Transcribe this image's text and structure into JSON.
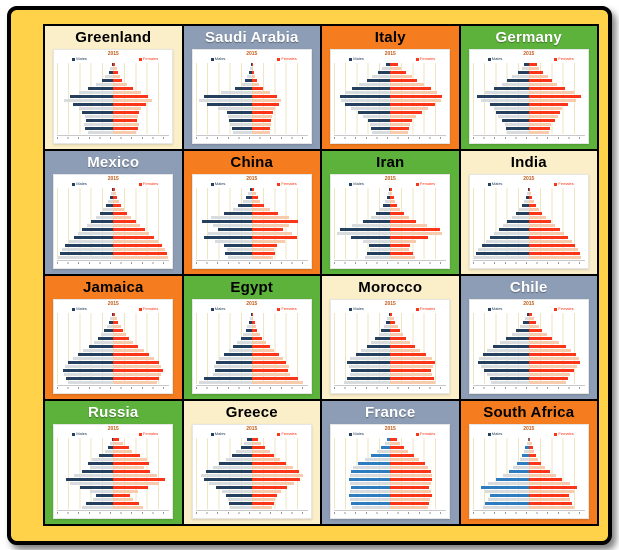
{
  "page": {
    "year_label": "2015",
    "legend": {
      "male": "Males",
      "female": "Females"
    }
  },
  "palette": {
    "gold": "#FFD24A",
    "cream": "#FBEFC9",
    "blue_gray": "#8D9DB5",
    "orange": "#F57D1F",
    "green": "#5CB23B",
    "navy": "#24405E",
    "male_blue": "#2E7CC0",
    "male_light": "#D8DCDE",
    "female_red": "#FB3517",
    "female_light": "#F8CBAD",
    "grid_line": "#EFE6C0",
    "year_text": "#BF5B17"
  },
  "chart_data": [
    {
      "type": "bar",
      "title": "Greenland",
      "year": "2015",
      "legend": [
        "Males",
        "Females"
      ],
      "bg": "cream",
      "title_color": "dark",
      "male_color": "navy",
      "males": [
        3,
        5,
        8,
        14,
        20,
        30,
        45,
        62,
        78,
        88,
        72,
        62,
        55,
        50,
        48,
        52,
        50,
        46
      ],
      "females": [
        4,
        6,
        9,
        12,
        16,
        24,
        36,
        50,
        62,
        70,
        58,
        50,
        46,
        44,
        42,
        46,
        44,
        40
      ]
    },
    {
      "type": "bar",
      "title": "Saudi Arabia",
      "year": "2015",
      "legend": [
        "Males",
        "Females"
      ],
      "bg": "blue_gray",
      "title_color": "light",
      "male_color": "navy",
      "males": [
        2,
        3,
        5,
        8,
        12,
        18,
        30,
        55,
        85,
        95,
        80,
        60,
        45,
        42,
        40,
        38,
        36,
        34
      ],
      "females": [
        2,
        3,
        4,
        6,
        9,
        13,
        20,
        32,
        45,
        52,
        48,
        42,
        38,
        36,
        35,
        34,
        33,
        32
      ]
    },
    {
      "type": "bar",
      "title": "Italy",
      "year": "2015",
      "legend": [
        "Males",
        "Females"
      ],
      "bg": "orange",
      "title_color": "dark",
      "male_color": "navy",
      "males": [
        8,
        14,
        22,
        32,
        42,
        55,
        68,
        80,
        90,
        88,
        80,
        70,
        58,
        48,
        40,
        36,
        34,
        32
      ],
      "females": [
        14,
        20,
        28,
        38,
        48,
        60,
        72,
        83,
        92,
        90,
        80,
        68,
        56,
        46,
        38,
        35,
        33,
        31
      ]
    },
    {
      "type": "bar",
      "title": "Germany",
      "year": "2015",
      "legend": [
        "Males",
        "Females"
      ],
      "bg": "green",
      "title_color": "light",
      "male_color": "navy",
      "males": [
        8,
        12,
        20,
        30,
        38,
        48,
        62,
        78,
        92,
        85,
        70,
        62,
        58,
        55,
        48,
        42,
        40,
        38
      ],
      "females": [
        14,
        18,
        26,
        34,
        42,
        50,
        64,
        80,
        93,
        85,
        70,
        60,
        56,
        52,
        46,
        40,
        38,
        36
      ]
    },
    {
      "type": "bar",
      "title": "Mexico",
      "year": "2015",
      "legend": [
        "Males",
        "Females"
      ],
      "bg": "blue_gray",
      "title_color": "light",
      "male_color": "navy",
      "males": [
        2,
        4,
        6,
        9,
        13,
        18,
        24,
        31,
        39,
        47,
        55,
        63,
        71,
        79,
        86,
        92,
        96,
        98
      ],
      "females": [
        3,
        5,
        7,
        10,
        14,
        19,
        25,
        32,
        40,
        48,
        56,
        64,
        72,
        80,
        87,
        93,
        96,
        97
      ]
    },
    {
      "type": "bar",
      "title": "China",
      "year": "2015",
      "legend": [
        "Males",
        "Females"
      ],
      "bg": "orange",
      "title_color": "dark",
      "male_color": "navy",
      "males": [
        3,
        6,
        10,
        16,
        24,
        34,
        50,
        72,
        88,
        70,
        60,
        78,
        85,
        66,
        50,
        44,
        48,
        42
      ],
      "females": [
        4,
        7,
        11,
        15,
        22,
        32,
        46,
        66,
        82,
        66,
        56,
        72,
        80,
        60,
        45,
        40,
        42,
        38
      ]
    },
    {
      "type": "bar",
      "title": "Iran",
      "year": "2015",
      "legend": [
        "Males",
        "Females"
      ],
      "bg": "green",
      "title_color": "dark",
      "male_color": "navy",
      "males": [
        2,
        4,
        6,
        9,
        13,
        18,
        25,
        34,
        48,
        68,
        90,
        95,
        70,
        48,
        38,
        36,
        42,
        46
      ],
      "females": [
        3,
        4,
        6,
        9,
        12,
        17,
        24,
        33,
        46,
        66,
        88,
        93,
        68,
        46,
        36,
        34,
        40,
        44
      ]
    },
    {
      "type": "bar",
      "title": "India",
      "year": "2015",
      "legend": [
        "Males",
        "Females"
      ],
      "bg": "cream",
      "title_color": "dark",
      "male_color": "navy",
      "males": [
        2,
        3,
        5,
        8,
        12,
        17,
        23,
        30,
        38,
        46,
        54,
        62,
        70,
        77,
        84,
        90,
        95,
        97
      ],
      "females": [
        2,
        4,
        6,
        9,
        13,
        18,
        24,
        31,
        39,
        47,
        55,
        63,
        70,
        77,
        83,
        88,
        92,
        94
      ]
    },
    {
      "type": "bar",
      "title": "Jamaica",
      "year": "2015",
      "legend": [
        "Males",
        "Females"
      ],
      "bg": "orange",
      "title_color": "dark",
      "male_color": "navy",
      "males": [
        3,
        5,
        8,
        12,
        16,
        22,
        28,
        35,
        44,
        54,
        63,
        72,
        80,
        86,
        90,
        88,
        84,
        80
      ],
      "females": [
        4,
        6,
        9,
        13,
        17,
        23,
        29,
        36,
        45,
        55,
        64,
        73,
        81,
        85,
        88,
        86,
        82,
        78
      ]
    },
    {
      "type": "bar",
      "title": "Egypt",
      "year": "2015",
      "legend": [
        "Males",
        "Females"
      ],
      "bg": "green",
      "title_color": "dark",
      "male_color": "navy",
      "males": [
        2,
        3,
        5,
        8,
        11,
        15,
        20,
        26,
        33,
        41,
        50,
        58,
        64,
        68,
        66,
        70,
        85,
        95
      ],
      "females": [
        2,
        3,
        5,
        7,
        10,
        14,
        19,
        25,
        32,
        40,
        48,
        56,
        62,
        66,
        64,
        68,
        82,
        92
      ]
    },
    {
      "type": "bar",
      "title": "Morocco",
      "year": "2015",
      "legend": [
        "Males",
        "Females"
      ],
      "bg": "cream",
      "title_color": "dark",
      "male_color": "navy",
      "males": [
        3,
        5,
        8,
        12,
        16,
        21,
        27,
        34,
        42,
        52,
        62,
        72,
        78,
        74,
        70,
        72,
        78,
        82
      ],
      "females": [
        4,
        6,
        9,
        13,
        17,
        22,
        28,
        35,
        44,
        54,
        64,
        74,
        80,
        76,
        72,
        74,
        78,
        80
      ]
    },
    {
      "type": "bar",
      "title": "Chile",
      "year": "2015",
      "legend": [
        "Males",
        "Females"
      ],
      "bg": "blue_gray",
      "title_color": "light",
      "male_color": "navy",
      "males": [
        4,
        7,
        11,
        16,
        22,
        30,
        40,
        52,
        64,
        74,
        82,
        88,
        90,
        86,
        80,
        74,
        70,
        68
      ],
      "females": [
        6,
        9,
        13,
        18,
        24,
        32,
        42,
        54,
        66,
        76,
        84,
        89,
        91,
        86,
        80,
        74,
        70,
        67
      ]
    },
    {
      "type": "bar",
      "title": "Russia",
      "year": "2015",
      "legend": [
        "Males",
        "Females"
      ],
      "bg": "green",
      "title_color": "light",
      "male_color": "navy",
      "males": [
        3,
        6,
        10,
        14,
        26,
        38,
        46,
        42,
        55,
        70,
        85,
        78,
        60,
        42,
        30,
        36,
        48,
        56
      ],
      "females": [
        10,
        18,
        28,
        34,
        48,
        60,
        64,
        55,
        65,
        78,
        92,
        82,
        62,
        44,
        30,
        36,
        46,
        54
      ]
    },
    {
      "type": "bar",
      "title": "Greece",
      "year": "2015",
      "legend": [
        "Males",
        "Females"
      ],
      "bg": "cream",
      "title_color": "dark",
      "male_color": "navy",
      "males": [
        8,
        13,
        20,
        28,
        36,
        46,
        58,
        70,
        82,
        90,
        86,
        76,
        64,
        54,
        46,
        42,
        40,
        38
      ],
      "females": [
        12,
        17,
        24,
        32,
        40,
        50,
        62,
        74,
        85,
        92,
        87,
        76,
        63,
        53,
        45,
        41,
        39,
        37
      ]
    },
    {
      "type": "bar",
      "title": "France",
      "year": "2015",
      "legend": [
        "Males",
        "Females"
      ],
      "bg": "blue_gray",
      "title_color": "light",
      "male_color": "blue",
      "males": [
        6,
        10,
        16,
        24,
        34,
        46,
        58,
        66,
        70,
        72,
        74,
        72,
        70,
        72,
        74,
        72,
        70,
        68
      ],
      "females": [
        12,
        17,
        24,
        32,
        42,
        52,
        62,
        68,
        72,
        74,
        75,
        73,
        70,
        72,
        74,
        71,
        69,
        67
      ]
    },
    {
      "type": "bar",
      "title": "South Africa",
      "year": "2015",
      "legend": [
        "Males",
        "Females"
      ],
      "bg": "orange",
      "title_color": "dark",
      "male_color": "blue",
      "males": [
        2,
        4,
        6,
        9,
        12,
        16,
        21,
        28,
        36,
        46,
        58,
        72,
        85,
        78,
        70,
        72,
        78,
        82
      ],
      "females": [
        3,
        5,
        7,
        10,
        13,
        17,
        22,
        29,
        38,
        48,
        60,
        74,
        87,
        80,
        72,
        74,
        78,
        80
      ]
    }
  ]
}
